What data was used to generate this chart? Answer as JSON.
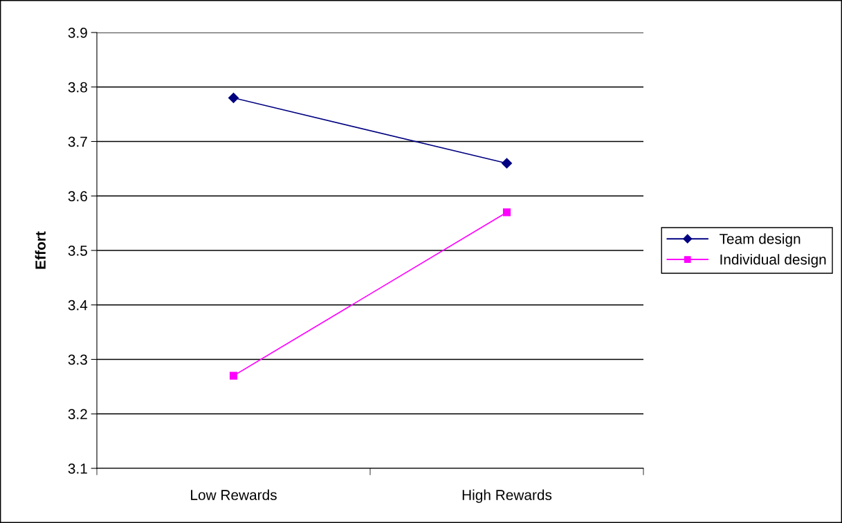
{
  "chart_data": {
    "type": "line",
    "ylabel": "Effort",
    "categories": [
      "Low Rewards",
      "High Rewards"
    ],
    "series": [
      {
        "name": "Team design",
        "color": "#000080",
        "marker": "diamond",
        "values": [
          3.78,
          3.66
        ]
      },
      {
        "name": "Individual design",
        "color": "#ff00ff",
        "marker": "square",
        "values": [
          3.27,
          3.57
        ]
      }
    ],
    "ylim": [
      3.1,
      3.9
    ],
    "yticks": [
      3.1,
      3.2,
      3.3,
      3.4,
      3.5,
      3.6,
      3.7,
      3.8,
      3.9
    ],
    "grid": "y",
    "legend": "right",
    "line_style": "solid"
  }
}
